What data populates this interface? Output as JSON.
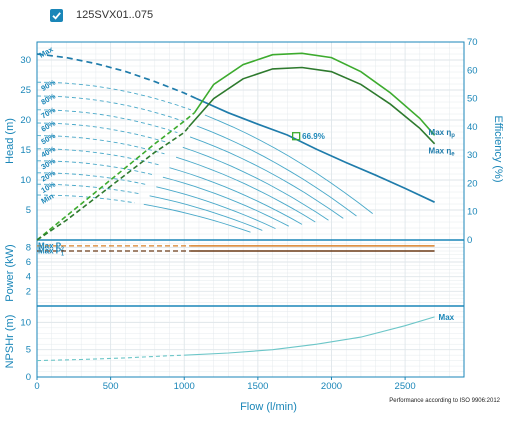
{
  "header": {
    "product": "125SVX01..075",
    "checkbox_checked": true
  },
  "colors": {
    "axis": "#1a86b8",
    "head_curve": "#1f7cab",
    "speed_curves": "#4aa9c9",
    "eff_max": "#3dab2e",
    "eff_nominal": "#2e7a2e",
    "power_light": "#d9822b",
    "power_dark": "#6b3a17",
    "npsh": "#6cc6c8",
    "bep_marker": "#3dab2e"
  },
  "chart_data": {
    "type": "line",
    "x_axis": {
      "label": "Flow (l/min)",
      "lim": [
        0,
        2900
      ],
      "ticks": [
        0,
        500,
        1000,
        1500,
        2000,
        2500
      ]
    },
    "panels": {
      "head": {
        "ylabel": "Head (m)",
        "ylim": [
          0,
          33
        ],
        "yticks": [
          5,
          10,
          15,
          20,
          25,
          30
        ],
        "y2label": "Efficiency (%)",
        "y2lim": [
          0,
          70
        ],
        "y2ticks": [
          0,
          10,
          20,
          30,
          40,
          50,
          60,
          70
        ],
        "max_curve": {
          "dashed": [
            [
              0,
              31
            ],
            [
              200,
              30.4
            ],
            [
              400,
              29.4
            ],
            [
              600,
              28.1
            ],
            [
              800,
              26.4
            ],
            [
              1000,
              24.5
            ],
            [
              1080,
              23.6
            ]
          ],
          "solid": [
            [
              1080,
              23.6
            ],
            [
              1300,
              21.2
            ],
            [
              1500,
              19.3
            ],
            [
              1700,
              17.5
            ],
            [
              1900,
              15.1
            ],
            [
              2100,
              12.9
            ],
            [
              2300,
              10.8
            ],
            [
              2500,
              8.6
            ],
            [
              2700,
              6.3
            ]
          ]
        },
        "speed_curves": [
          {
            "label": "90%",
            "x_end": 2280,
            "p0": 26.3,
            "p_end": 4.4
          },
          {
            "label": "80%",
            "x_end": 2170,
            "p0": 24.0,
            "p_end": 4.0
          },
          {
            "label": "70%",
            "x_end": 2080,
            "p0": 21.7,
            "p_end": 3.6
          },
          {
            "label": "60%",
            "x_end": 1980,
            "p0": 19.5,
            "p_end": 3.3
          },
          {
            "label": "50%",
            "x_end": 1890,
            "p0": 17.4,
            "p_end": 3.0
          },
          {
            "label": "40%",
            "x_end": 1800,
            "p0": 15.2,
            "p_end": 2.6
          },
          {
            "label": "30%",
            "x_end": 1710,
            "p0": 13.2,
            "p_end": 2.3
          },
          {
            "label": "20%",
            "x_end": 1620,
            "p0": 11.2,
            "p_end": 1.9
          },
          {
            "label": "10%",
            "x_end": 1530,
            "p0": 9.3,
            "p_end": 1.6
          },
          {
            "label": "Min",
            "x_end": 1450,
            "p0": 7.5,
            "p_end": 1.3
          }
        ],
        "max_label": "Max",
        "efficiency": {
          "max": {
            "dashed": [
              [
                0,
                0
              ],
              [
                200,
                8.5
              ],
              [
                400,
                17
              ],
              [
                600,
                25.5
              ],
              [
                800,
                34
              ],
              [
                1000,
                42
              ],
              [
                1070,
                45
              ]
            ],
            "solid": [
              [
                1070,
                45
              ],
              [
                1200,
                55
              ],
              [
                1400,
                62
              ],
              [
                1600,
                65.5
              ],
              [
                1800,
                66
              ],
              [
                2000,
                64.5
              ],
              [
                2200,
                59.5
              ],
              [
                2400,
                52
              ],
              [
                2600,
                43
              ],
              [
                2700,
                37
              ]
            ],
            "label": "Max ηp"
          },
          "nominal": {
            "dashed": [
              [
                0,
                0
              ],
              [
                200,
                7
              ],
              [
                400,
                15
              ],
              [
                600,
                23
              ],
              [
                800,
                31
              ],
              [
                1000,
                38
              ],
              [
                1030,
                40
              ]
            ],
            "solid": [
              [
                1030,
                40
              ],
              [
                1200,
                50
              ],
              [
                1400,
                57
              ],
              [
                1600,
                60.5
              ],
              [
                1800,
                61
              ],
              [
                2000,
                59.5
              ],
              [
                2200,
                55
              ],
              [
                2400,
                48
              ],
              [
                2600,
                39.5
              ],
              [
                2700,
                34
              ]
            ],
            "label": "Max ηe"
          },
          "bep": {
            "x": 1760,
            "head": 17.3,
            "label": "66.9%"
          }
        }
      },
      "power": {
        "ylabel": "Power (kW)",
        "ylim": [
          0,
          9
        ],
        "yticks": [
          2,
          4,
          6,
          8
        ],
        "lines": [
          {
            "name": "Max P2",
            "value": 8.2,
            "from": 1040,
            "to": 2700
          },
          {
            "name": "Max P1",
            "value": 7.5,
            "from": 1040,
            "to": 2700
          }
        ]
      },
      "npshr": {
        "ylabel": "NPSHr (m)",
        "ylim": [
          0,
          13
        ],
        "yticks": [
          0,
          5,
          10
        ],
        "curve": {
          "dashed": [
            [
              0,
              3.0
            ],
            [
              300,
              3.2
            ],
            [
              600,
              3.5
            ],
            [
              900,
              3.9
            ],
            [
              1000,
              4.0
            ]
          ],
          "solid": [
            [
              1000,
              4.0
            ],
            [
              1300,
              4.4
            ],
            [
              1600,
              5.0
            ],
            [
              1900,
              6.0
            ],
            [
              2200,
              7.3
            ],
            [
              2500,
              9.4
            ],
            [
              2700,
              11.0
            ]
          ]
        },
        "max_label": "Max"
      }
    },
    "footnote": "Performance according to ISO 9906:2012"
  }
}
